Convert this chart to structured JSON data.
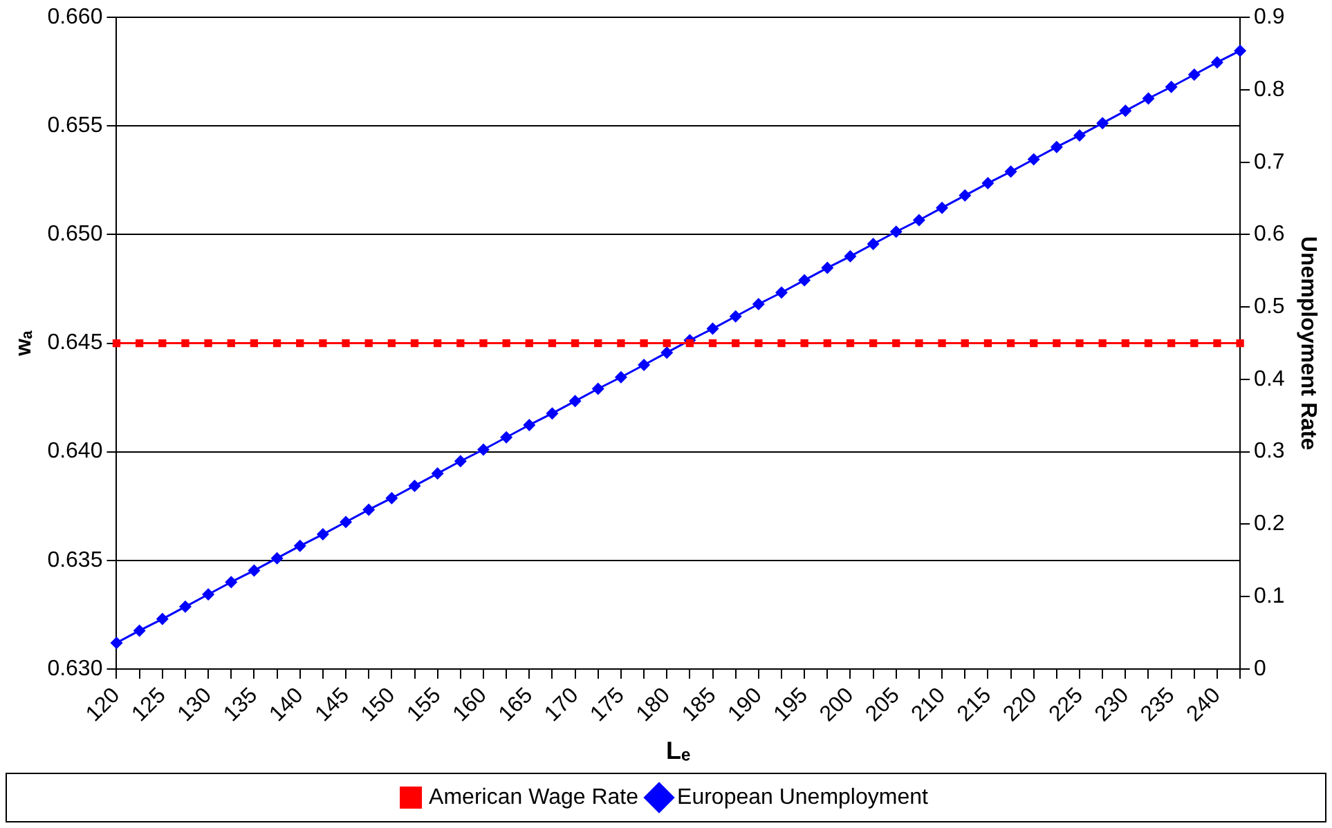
{
  "chart_data": {
    "type": "line",
    "xlabel": "Lₑ",
    "ylabel": "wₐ",
    "y2label": "Unemployment Rate",
    "categories": [
      "120",
      null,
      "125",
      null,
      "130",
      null,
      "135",
      null,
      "140",
      null,
      "145",
      null,
      "150",
      null,
      "155",
      null,
      "160",
      null,
      "165",
      null,
      "170",
      null,
      "175",
      null,
      "180",
      null,
      "185",
      null,
      "190",
      null,
      "195",
      null,
      "200",
      null,
      "205",
      null,
      "210",
      null,
      "215",
      null,
      "220",
      null,
      "225",
      null,
      "230",
      null,
      "235",
      null,
      "240",
      null
    ],
    "series": [
      {
        "name": "American Wage Rate",
        "color": "#ff0000",
        "marker": "square",
        "values": [
          0.645,
          0.645,
          0.645,
          0.645,
          0.645,
          0.645,
          0.645,
          0.645,
          0.645,
          0.645,
          0.645,
          0.645,
          0.645,
          0.645,
          0.645,
          0.645,
          0.645,
          0.645,
          0.645,
          0.645,
          0.645,
          0.645,
          0.645,
          0.645,
          0.645,
          0.645,
          0.645,
          0.645,
          0.645,
          0.645,
          0.645,
          0.645,
          0.645,
          0.645,
          0.645,
          0.645,
          0.645,
          0.645,
          0.645,
          0.645,
          0.645,
          0.645,
          0.645,
          0.645,
          0.645,
          0.645,
          0.645,
          0.645,
          0.645,
          0.645
        ]
      },
      {
        "name": "European Unemployment",
        "color": "#0000ff",
        "marker": "diamond",
        "axis": "y2",
        "values": [
          0.036,
          0.053,
          0.069,
          0.086,
          0.103,
          0.12,
          0.136,
          0.153,
          0.17,
          0.186,
          0.203,
          0.22,
          0.236,
          0.253,
          0.27,
          0.287,
          0.303,
          0.32,
          0.337,
          0.353,
          0.37,
          0.387,
          0.403,
          0.42,
          0.437,
          0.454,
          0.47,
          0.487,
          0.504,
          0.52,
          0.537,
          0.554,
          0.57,
          0.587,
          0.604,
          0.62,
          0.637,
          0.654,
          0.671,
          0.687,
          0.704,
          0.721,
          0.737,
          0.754,
          0.771,
          0.788,
          0.804,
          0.821,
          0.838,
          0.854
        ]
      }
    ],
    "ylim": [
      0.63,
      0.66
    ],
    "yticks": [
      {
        "value": 0.63,
        "label": "0.630"
      },
      {
        "value": 0.635,
        "label": "0.635"
      },
      {
        "value": 0.64,
        "label": "0.640"
      },
      {
        "value": 0.645,
        "label": "0.645"
      },
      {
        "value": 0.65,
        "label": "0.650"
      },
      {
        "value": 0.655,
        "label": "0.655"
      },
      {
        "value": 0.66,
        "label": "0.660"
      }
    ],
    "y2lim": [
      0,
      0.9
    ],
    "y2ticks": [
      0,
      0.1,
      0.2,
      0.3,
      0.4,
      0.5,
      0.6,
      0.7,
      0.8,
      0.9
    ],
    "grid": "y",
    "legend": "bottom",
    "line_style": "solid"
  }
}
